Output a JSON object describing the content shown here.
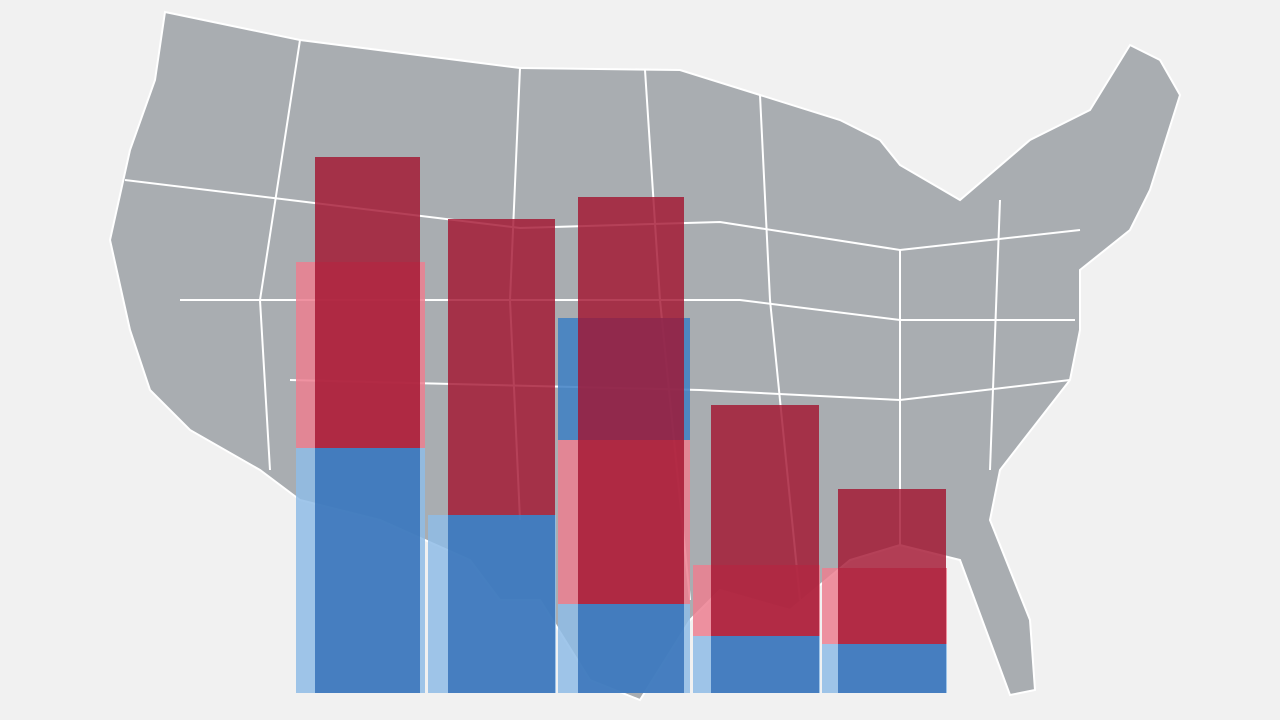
{
  "chart_data": [
    {
      "type": "bar",
      "stacked": true,
      "categories": [
        null,
        null,
        null,
        null,
        null
      ],
      "ylim": [
        0,
        550
      ],
      "series": [
        {
          "color": "#8fbce6",
          "values": [
            245,
            178,
            89,
            57,
            49
          ]
        },
        {
          "color": "#ec7f90",
          "values": [
            186,
            0,
            164,
            71,
            76
          ]
        },
        {
          "color": "#3d7fc4",
          "values": [
            0,
            0,
            122,
            0,
            0
          ]
        }
      ]
    },
    {
      "type": "bar",
      "stacked": true,
      "categories": [
        null,
        null,
        null,
        null,
        null
      ],
      "ylim": [
        0,
        550
      ],
      "series": [
        {
          "color": "#2f6db5",
          "values": [
            245,
            178,
            89,
            57,
            49
          ]
        },
        {
          "color": "#a3122e",
          "values": [
            291,
            296,
            407,
            231,
            155
          ]
        }
      ]
    }
  ]
}
